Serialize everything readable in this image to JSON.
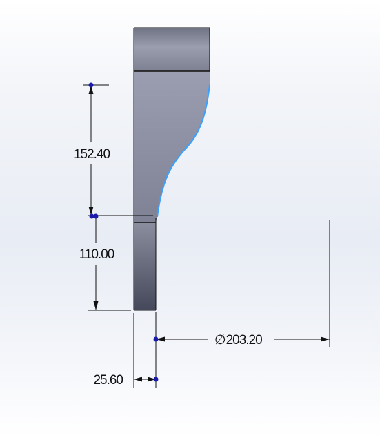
{
  "dimensions": {
    "upper_height": "152.40",
    "lower_height": "110.00",
    "diameter_symbol": "∅",
    "diameter_value": "203.20",
    "width": "25.60"
  },
  "colors": {
    "body": "#8d91a3",
    "body_dark": "#4b4f5f",
    "outline": "#111111",
    "profile_curve": "#3aa0ff",
    "marker": "#1a1aa8"
  }
}
